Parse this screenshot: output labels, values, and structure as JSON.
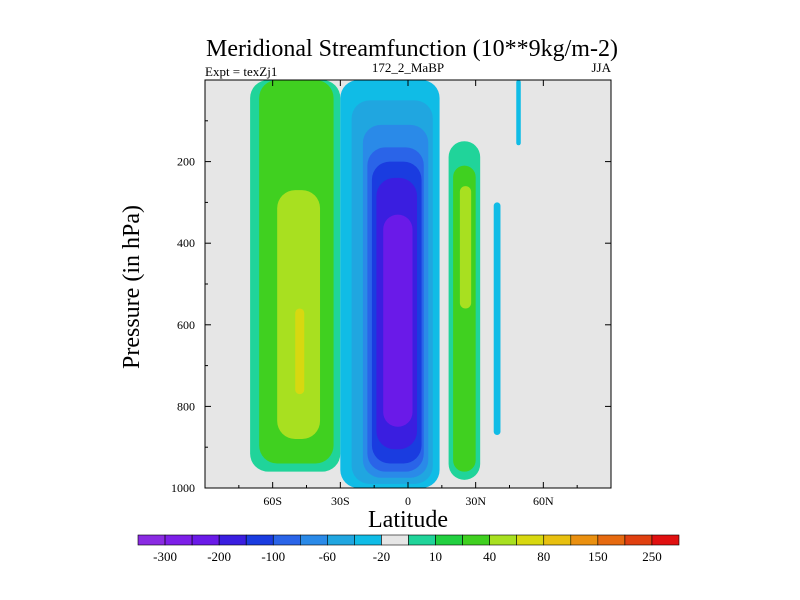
{
  "chart_data": {
    "type": "filled-contour",
    "title": "Meridional Streamfunction (10**9kg/m-2)",
    "subtitle_left": "Expt = texZj1",
    "subtitle_center": "172_2_MaBP",
    "subtitle_right": "JJA",
    "xlabel": "Latitude",
    "ylabel": "Pressure (in hPa)",
    "xlim": [
      -90,
      90
    ],
    "ylim": [
      1000,
      0
    ],
    "x_ticks": [
      {
        "value": -60,
        "label": "60S"
      },
      {
        "value": -30,
        "label": "30S"
      },
      {
        "value": 0,
        "label": "0"
      },
      {
        "value": 30,
        "label": "30N"
      },
      {
        "value": 60,
        "label": "60N"
      }
    ],
    "y_ticks": [
      {
        "value": 200,
        "label": "200"
      },
      {
        "value": 400,
        "label": "400"
      },
      {
        "value": 600,
        "label": "600"
      },
      {
        "value": 800,
        "label": "800"
      },
      {
        "value": 1000,
        "label": "1000"
      }
    ],
    "background_color": "#e6e6e6",
    "colorbar": {
      "colors": [
        "#8a2be2",
        "#7d1fe8",
        "#6a1ae8",
        "#3a1ee0",
        "#1a3ce0",
        "#2a64e8",
        "#2a8ae8",
        "#20a6e0",
        "#10bce6",
        "#e6e6e6",
        "#20d49a",
        "#22d040",
        "#40d020",
        "#a8e020",
        "#d8d810",
        "#e8c010",
        "#ea9010",
        "#e66a10",
        "#e04010",
        "#e01010"
      ],
      "labels": [
        {
          "after_index": 0,
          "text": "-300"
        },
        {
          "after_index": 2,
          "text": "-200"
        },
        {
          "after_index": 4,
          "text": "-100"
        },
        {
          "after_index": 6,
          "text": "-60"
        },
        {
          "after_index": 8,
          "text": "-20"
        },
        {
          "after_index": 10,
          "text": "10"
        },
        {
          "after_index": 12,
          "text": "40"
        },
        {
          "after_index": 14,
          "text": "80"
        },
        {
          "after_index": 16,
          "text": "150"
        },
        {
          "after_index": 18,
          "text": "250"
        }
      ]
    },
    "cells": [
      {
        "name": "southern-hemisphere-positive-cell",
        "center_lat": -50,
        "center_p": 550,
        "levels": [
          {
            "color": "#20d49a",
            "lat_min": -70,
            "lat_max": -30,
            "p_top": 0,
            "p_bottom": 960
          },
          {
            "color": "#40d020",
            "lat_min": -66,
            "lat_max": -33,
            "p_top": 0,
            "p_bottom": 940
          },
          {
            "color": "#a8e020",
            "lat_min": -58,
            "lat_max": -39,
            "p_top": 270,
            "p_bottom": 880
          },
          {
            "color": "#d8d810",
            "lat_min": -50,
            "lat_max": -46,
            "p_top": 560,
            "p_bottom": 770
          }
        ]
      },
      {
        "name": "equatorial-negative-cell",
        "center_lat": -3,
        "center_p": 560,
        "levels": [
          {
            "color": "#10bce6",
            "lat_min": -30,
            "lat_max": 14,
            "p_top": 0,
            "p_bottom": 1000
          },
          {
            "color": "#20a6e0",
            "lat_min": -25,
            "lat_max": 11,
            "p_top": 50,
            "p_bottom": 990
          },
          {
            "color": "#2a8ae8",
            "lat_min": -20,
            "lat_max": 9,
            "p_top": 110,
            "p_bottom": 975
          },
          {
            "color": "#2a64e8",
            "lat_min": -18,
            "lat_max": 7,
            "p_top": 165,
            "p_bottom": 960
          },
          {
            "color": "#1a3ce0",
            "lat_min": -16,
            "lat_max": 6,
            "p_top": 200,
            "p_bottom": 940
          },
          {
            "color": "#3a1ee0",
            "lat_min": -14,
            "lat_max": 4,
            "p_top": 240,
            "p_bottom": 905
          },
          {
            "color": "#6a1ae8",
            "lat_min": -11,
            "lat_max": 2,
            "p_top": 330,
            "p_bottom": 850
          }
        ]
      },
      {
        "name": "northern-subtropical-positive-cell",
        "center_lat": 26,
        "center_p": 600,
        "levels": [
          {
            "color": "#20d49a",
            "lat_min": 18,
            "lat_max": 32,
            "p_top": 150,
            "p_bottom": 980
          },
          {
            "color": "#40d020",
            "lat_min": 20,
            "lat_max": 30,
            "p_top": 210,
            "p_bottom": 960
          },
          {
            "color": "#a8e020",
            "lat_min": 23,
            "lat_max": 28,
            "p_top": 260,
            "p_bottom": 560
          }
        ]
      },
      {
        "name": "northern-negative-filament",
        "center_lat": 40,
        "center_p": 580,
        "levels": [
          {
            "color": "#10bce6",
            "lat_min": 38,
            "lat_max": 41,
            "p_top": 300,
            "p_bottom": 870
          }
        ]
      },
      {
        "name": "northern-small-negative-tip",
        "center_lat": 49,
        "center_p": 80,
        "levels": [
          {
            "color": "#10bce6",
            "lat_min": 48,
            "lat_max": 50,
            "p_top": 0,
            "p_bottom": 160
          }
        ]
      }
    ]
  }
}
